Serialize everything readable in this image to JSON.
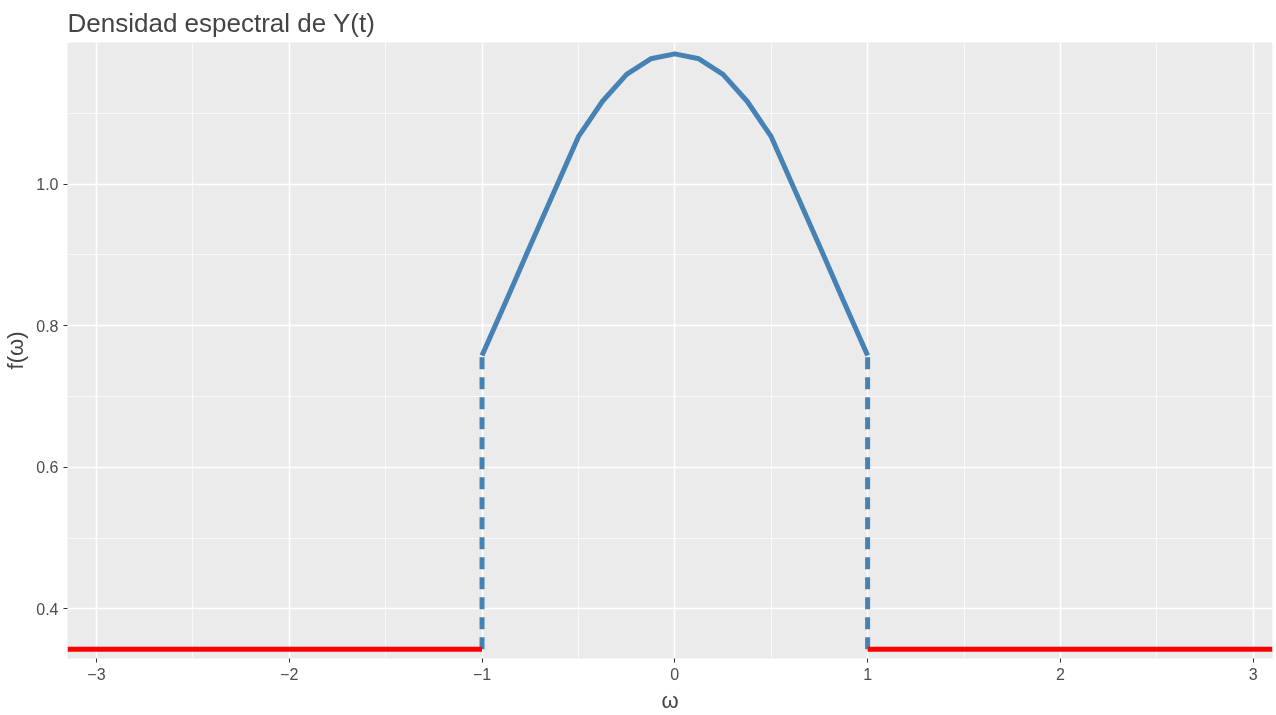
{
  "chart_data": {
    "type": "line",
    "title": "Densidad espectral de Y(t)",
    "xlabel": "ω",
    "ylabel": "f(ω)",
    "xlim": [
      -3.15,
      3.1
    ],
    "ylim": [
      0.33,
      1.2
    ],
    "xticks": [
      -3,
      -2,
      -1,
      0,
      1,
      2,
      3
    ],
    "yticks": [
      0.4,
      0.6,
      0.8,
      {
        "value": 1,
        "label": "1.0"
      }
    ],
    "grid": true,
    "series": [
      {
        "color": "#4682b4",
        "line_style": "solid",
        "x": [
          -1,
          -0.875,
          -0.75,
          -0.625,
          -0.5,
          -0.375,
          -0.25,
          -0.125,
          0,
          0.125,
          0.25,
          0.375,
          0.5,
          0.625,
          0.75,
          0.875,
          1
        ],
        "values": [
          0.758,
          0.835,
          0.913,
          0.99,
          1.067,
          1.117,
          1.155,
          1.177,
          1.184,
          1.177,
          1.155,
          1.117,
          1.067,
          0.99,
          0.913,
          0.835,
          0.758
        ]
      },
      {
        "color": "#4682b4",
        "line_style": "dashed",
        "x": [
          -1,
          -1
        ],
        "values": [
          0.343,
          0.758
        ]
      },
      {
        "color": "#4682b4",
        "line_style": "dashed",
        "x": [
          1,
          1
        ],
        "values": [
          0.343,
          0.758
        ]
      },
      {
        "color": "#ff0000",
        "line_style": "solid",
        "x": [
          -3.15,
          -1
        ],
        "values": [
          0.343,
          0.343
        ]
      },
      {
        "color": "#ff0000",
        "line_style": "solid",
        "x": [
          1,
          3.1
        ],
        "values": [
          0.343,
          0.343
        ]
      }
    ]
  }
}
